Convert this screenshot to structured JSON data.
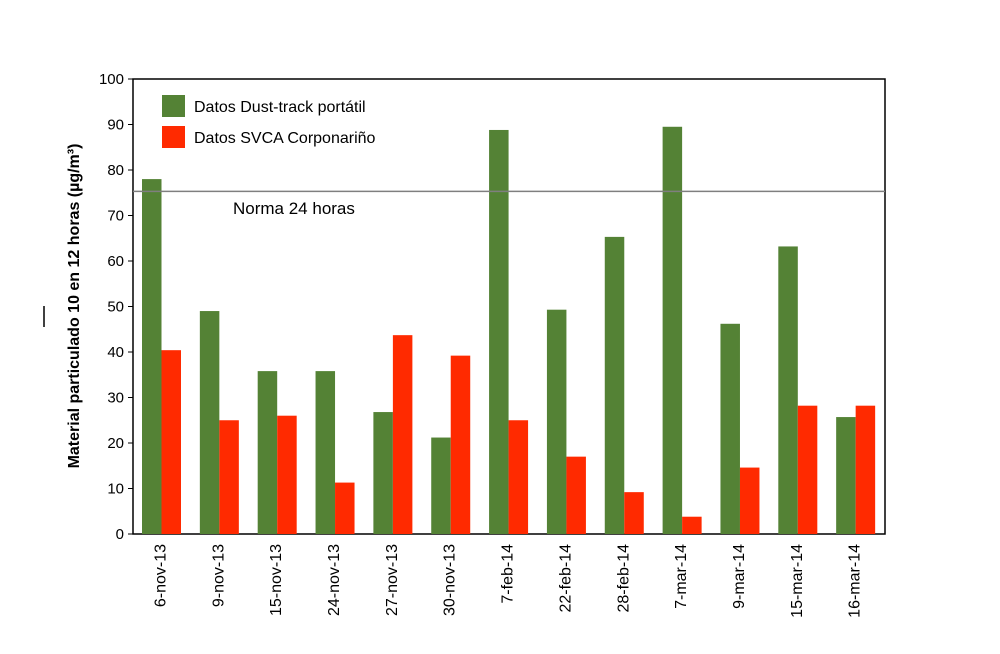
{
  "chart_data": {
    "type": "bar",
    "title": "",
    "xlabel": "",
    "ylabel": "Material particulado 10 en 12 horas (µg/m³)",
    "ylim": [
      0,
      100
    ],
    "yticks": [
      0,
      10,
      20,
      30,
      40,
      50,
      60,
      70,
      80,
      90,
      100
    ],
    "grid": false,
    "legend_position": "top-left",
    "categories": [
      "6-nov-13",
      "9-nov-13",
      "15-nov-13",
      "24-nov-13",
      "27-nov-13",
      "30-nov-13",
      "7-feb-14",
      "22-feb-14",
      "28-feb-14",
      "7-mar-14",
      "9-mar-14",
      "15-mar-14",
      "16-mar-14"
    ],
    "series": [
      {
        "name": "Datos Dust-track portátil",
        "color": "#548235",
        "values": [
          78,
          49,
          35.8,
          35.8,
          26.8,
          21.2,
          88.8,
          49.3,
          65.3,
          89.5,
          46.2,
          63.2,
          25.7
        ]
      },
      {
        "name": "Datos SVCA Corponariño",
        "color": "#ff2a00",
        "values": [
          40.4,
          25,
          26,
          11.3,
          43.7,
          39.2,
          25,
          17,
          9.2,
          3.8,
          14.6,
          28.2,
          28.2
        ]
      }
    ],
    "reference_line": {
      "value": 75.3,
      "label": "Norma 24 horas"
    }
  }
}
